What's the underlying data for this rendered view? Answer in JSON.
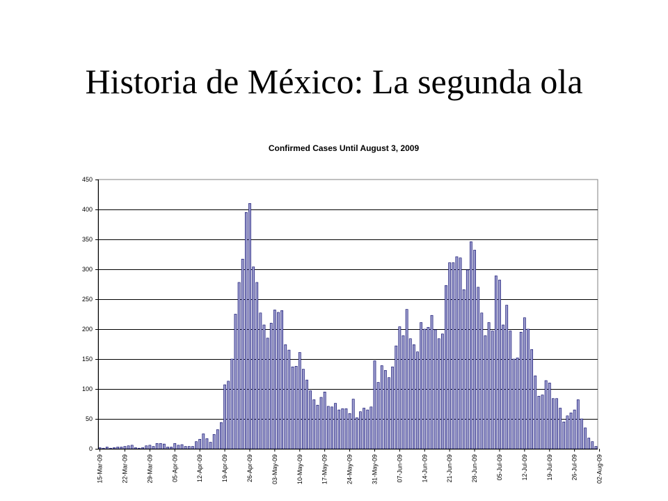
{
  "slide": {
    "title": "Historia de México: La segunda ola"
  },
  "chart_data": {
    "type": "bar",
    "title": "Confirmed Cases Until August 3, 2009",
    "xlabel": "",
    "ylabel": "",
    "ylim": [
      0,
      450
    ],
    "yticks": [
      0,
      50,
      100,
      150,
      200,
      250,
      300,
      350,
      400,
      450
    ],
    "grid": true,
    "legend": "none",
    "start_date": "2009-03-15",
    "x_tick_labels": [
      "15-Mar-09",
      "22-Mar-09",
      "29-Mar-09",
      "05-Apr-09",
      "12-Apr-09",
      "19-Apr-09",
      "26-Apr-09",
      "03-May-09",
      "10-May-09",
      "17-May-09",
      "24-May-09",
      "31-May-09",
      "07-Jun-09",
      "14-Jun-09",
      "21-Jun-09",
      "28-Jun-09",
      "05-Jul-09",
      "12-Jul-09",
      "19-Jul-09",
      "26-Jul-09",
      "02-Aug-09"
    ],
    "colors": {
      "bar_fill": "#9999cc",
      "bar_stroke": "#000066",
      "plot_bg": "#ffffff",
      "grid": "#000000"
    },
    "values": [
      2,
      1,
      3,
      1,
      2,
      3,
      3,
      4,
      5,
      6,
      2,
      1,
      2,
      5,
      6,
      4,
      9,
      9,
      8,
      3,
      3,
      9,
      6,
      7,
      4,
      4,
      4,
      12,
      16,
      25,
      17,
      11,
      24,
      32,
      44,
      107,
      113,
      150,
      225,
      278,
      317,
      395,
      410,
      304,
      278,
      227,
      207,
      185,
      210,
      232,
      228,
      231,
      174,
      165,
      137,
      138,
      161,
      133,
      115,
      97,
      82,
      73,
      86,
      95,
      71,
      70,
      76,
      65,
      67,
      67,
      59,
      83,
      52,
      62,
      68,
      65,
      70,
      147,
      111,
      139,
      131,
      119,
      137,
      172,
      204,
      189,
      233,
      184,
      174,
      162,
      211,
      200,
      203,
      223,
      199,
      184,
      192,
      273,
      311,
      311,
      321,
      319,
      266,
      299,
      346,
      332,
      270,
      227,
      189,
      211,
      197,
      289,
      282,
      207,
      240,
      197,
      150,
      152,
      195,
      219,
      200,
      166,
      122,
      88,
      90,
      114,
      110,
      84,
      84,
      68,
      45,
      55,
      60,
      65,
      82,
      50,
      35,
      18,
      12,
      4
    ]
  }
}
